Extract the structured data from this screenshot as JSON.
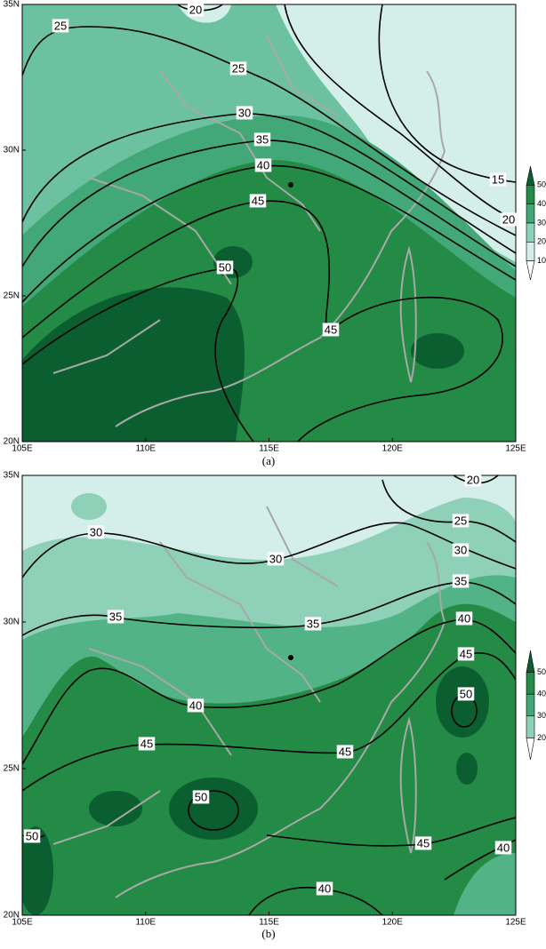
{
  "panels": [
    {
      "caption": "(a)",
      "lat_labels": [
        "35N",
        "30N",
        "25N",
        "20N"
      ],
      "lon_labels": [
        "105E",
        "110E",
        "115E",
        "120E",
        "125E"
      ],
      "contour_labels": [
        "25",
        "20",
        "25",
        "30",
        "35",
        "40",
        "45",
        "50",
        "45",
        "15",
        "20"
      ],
      "colorbar_labels": [
        "50",
        "40",
        "30",
        "20",
        "10"
      ]
    },
    {
      "caption": "(b)",
      "lat_labels": [
        "35N",
        "30N",
        "25N",
        "20N"
      ],
      "lon_labels": [
        "105E",
        "110E",
        "115E",
        "120E",
        "125E"
      ],
      "contour_labels": [
        "30",
        "30",
        "25",
        "30",
        "35",
        "35",
        "35",
        "40",
        "40",
        "45",
        "45",
        "50",
        "45",
        "50",
        "45",
        "40",
        "40",
        "50",
        "20"
      ],
      "colorbar_labels": [
        "50",
        "40",
        "30",
        "20"
      ]
    }
  ]
}
